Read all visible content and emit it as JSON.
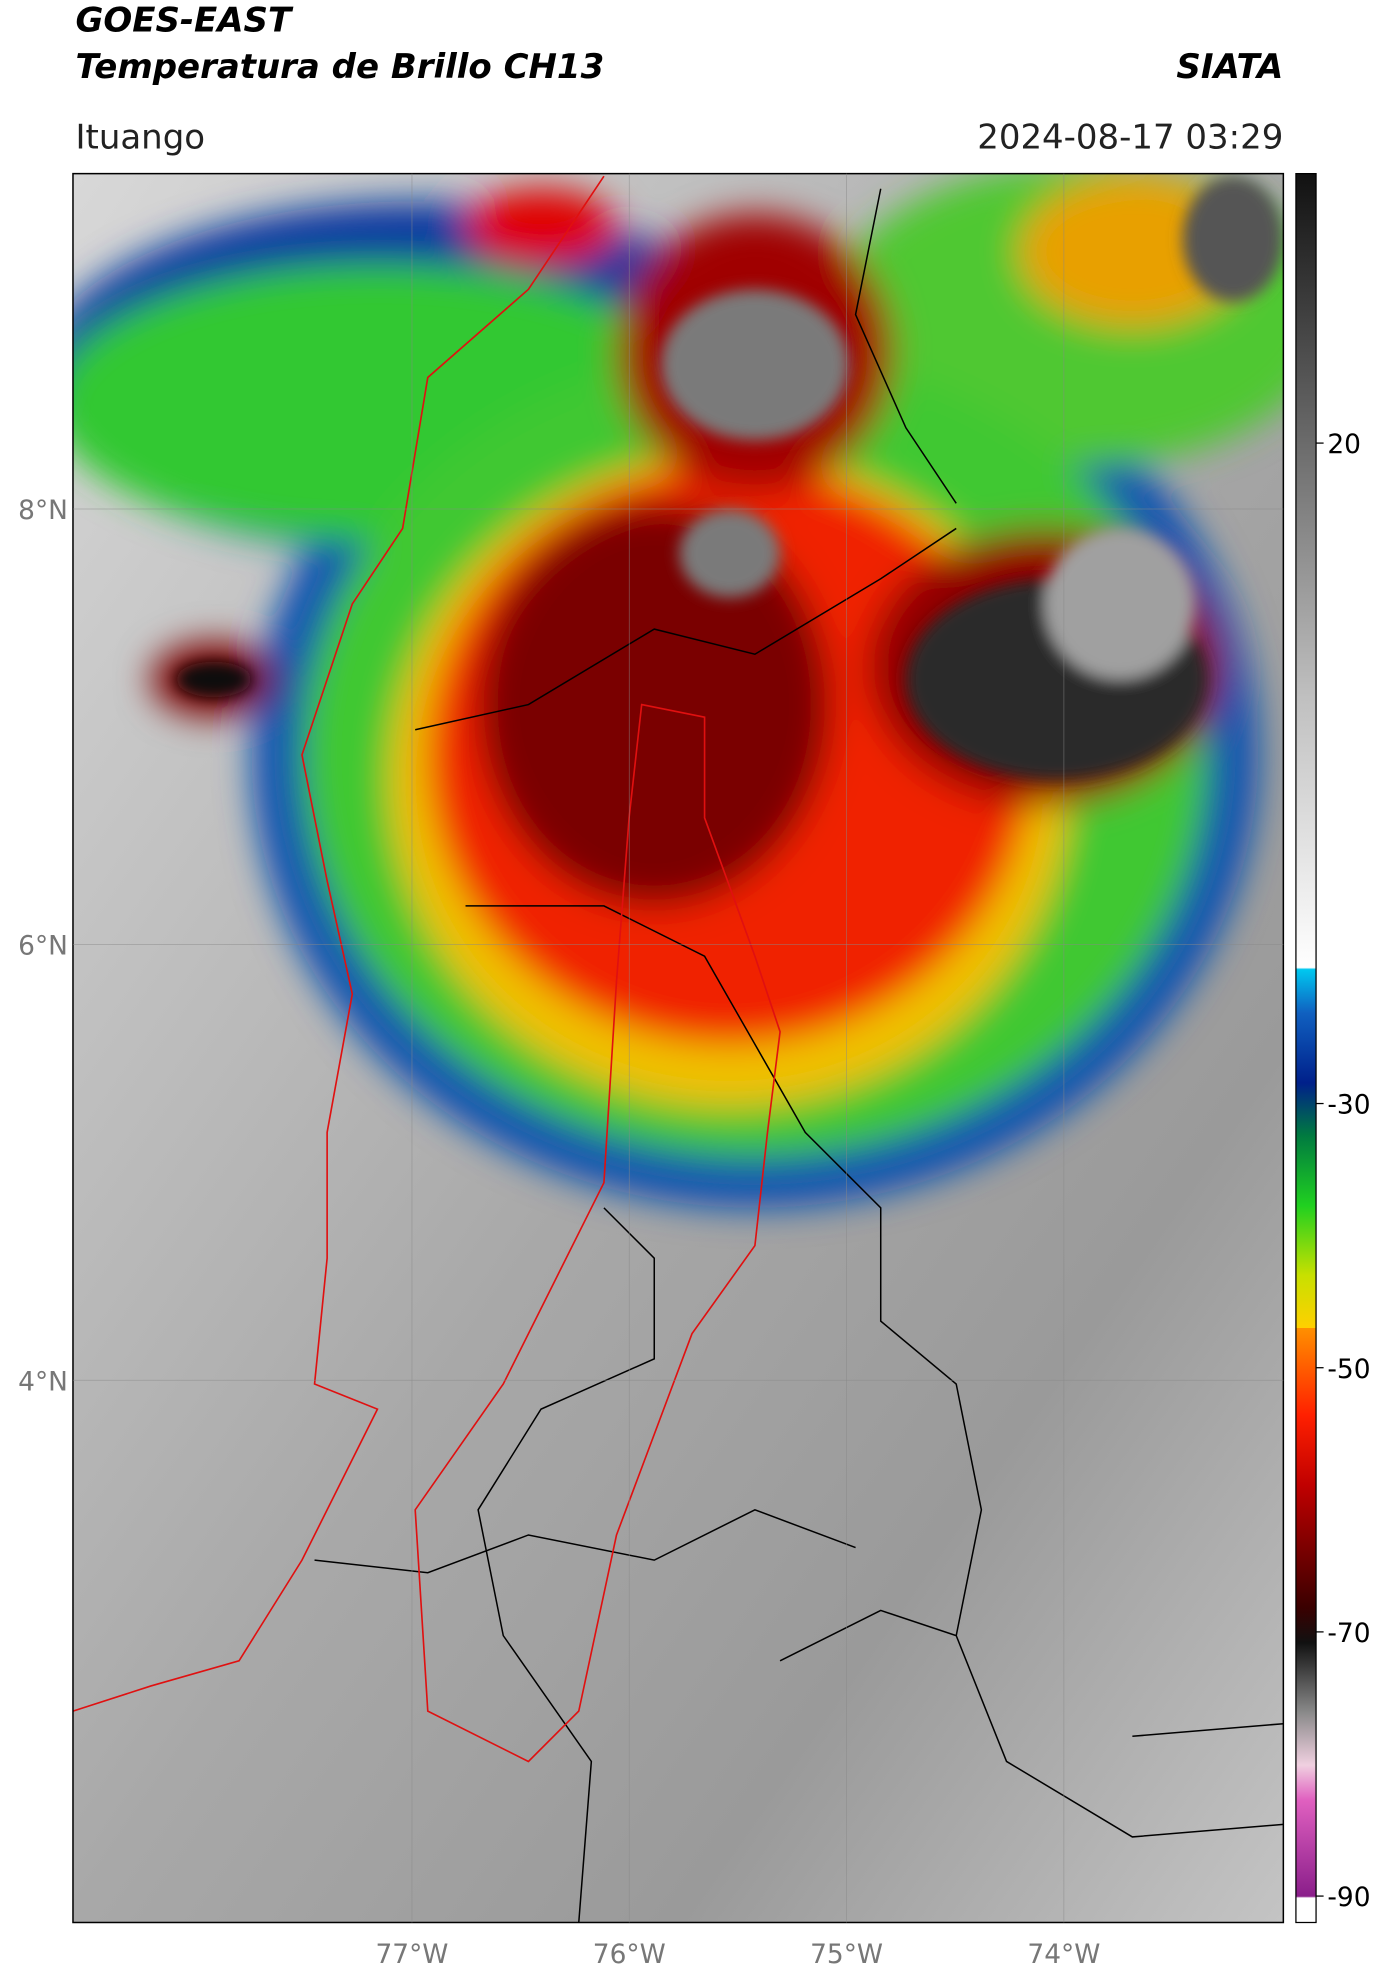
{
  "header": {
    "title": "GOES-EAST",
    "subtitle": "Temperatura de Brillo CH13",
    "agency": "SIATA",
    "location": "Ituango",
    "datetime": "2024-08-17 03:29"
  },
  "map": {
    "xlim": [
      -78.56,
      -72.99
    ],
    "ylim": [
      1.51,
      9.54
    ],
    "xticks": [
      {
        "value": -77,
        "label": "77°W"
      },
      {
        "value": -76,
        "label": "76°W"
      },
      {
        "value": -75,
        "label": "75°W"
      },
      {
        "value": -74,
        "label": "74°W"
      }
    ],
    "yticks": [
      {
        "value": 8,
        "label": "8°N"
      },
      {
        "value": 6,
        "label": "6°N"
      },
      {
        "value": 4,
        "label": "4°N"
      }
    ],
    "grid": true
  },
  "colorbar": {
    "lim": [
      -92,
      40.4
    ],
    "ticks": [
      20,
      -30,
      -50,
      -70,
      -90
    ]
  }
}
